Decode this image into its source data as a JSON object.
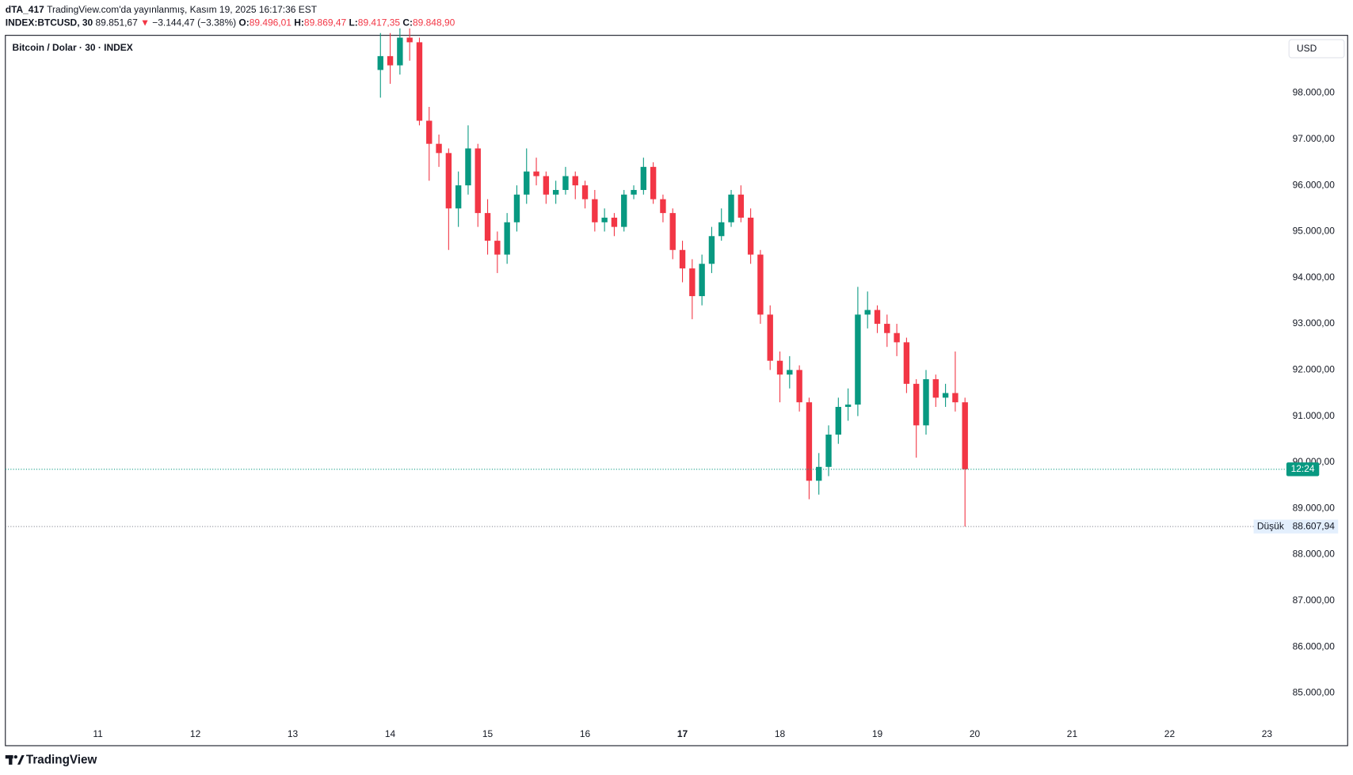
{
  "header": {
    "author": "dTA_417",
    "published": "TradingView.com'da yayınlanmış, Kasım 19, 2025 16:17:36 EST",
    "symbol": "INDEX:BTCUSD, 30",
    "last": "89.851,67",
    "arrow": "▼",
    "change": "−3.144,47 (−3.38%)",
    "open_label": "O:",
    "open": "89.496,01",
    "high_label": "H:",
    "high": "89.869,47",
    "low_label": "L:",
    "low": "89.417,35",
    "close_label": "C:",
    "close": "89.848,90"
  },
  "footer": {
    "brand": "TradingView"
  },
  "chart_data": {
    "type": "candlestick",
    "title": "Bitcoin / Dolar · 30 · INDEX",
    "currency": "USD",
    "up_color": "#089981",
    "down_color": "#f23645",
    "xlim": [
      10.05,
      23.19
    ],
    "xticks": [
      11,
      12,
      13,
      14,
      15,
      16,
      17,
      18,
      19,
      20,
      21,
      22,
      23
    ],
    "xtick_bold": 17,
    "ylim": [
      83860,
      99250
    ],
    "yticks": [
      {
        "value": 85000,
        "label": "85.000,00"
      },
      {
        "value": 86000,
        "label": "86.000,00"
      },
      {
        "value": 87000,
        "label": "87.000,00"
      },
      {
        "value": 88000,
        "label": "88.000,00"
      },
      {
        "value": 89000,
        "label": "89.000,00"
      },
      {
        "value": 90000,
        "label": "90.000,00"
      },
      {
        "value": 91000,
        "label": "91.000,00"
      },
      {
        "value": 92000,
        "label": "92.000,00"
      },
      {
        "value": 93000,
        "label": "93.000,00"
      },
      {
        "value": 94000,
        "label": "94.000,00"
      },
      {
        "value": 95000,
        "label": "95.000,00"
      },
      {
        "value": 96000,
        "label": "96.000,00"
      },
      {
        "value": 97000,
        "label": "97.000,00"
      },
      {
        "value": 98000,
        "label": "98.000,00"
      }
    ],
    "price_line": {
      "value": 89848.9,
      "countdown": "12:24"
    },
    "low_line": {
      "label": "Düşük",
      "value": 88607.94,
      "value_label": "88.607,94"
    },
    "candles": [
      {
        "x": 13.9,
        "open": 98500,
        "high": 99300,
        "low": 97900,
        "close": 98800
      },
      {
        "x": 14.0,
        "open": 98800,
        "high": 99300,
        "low": 98200,
        "close": 98600
      },
      {
        "x": 14.1,
        "open": 98600,
        "high": 99400,
        "low": 98400,
        "close": 99200
      },
      {
        "x": 14.2,
        "open": 99200,
        "high": 99400,
        "low": 98700,
        "close": 99100
      },
      {
        "x": 14.3,
        "open": 99100,
        "high": 99200,
        "low": 97300,
        "close": 97400
      },
      {
        "x": 14.4,
        "open": 97400,
        "high": 97700,
        "low": 96100,
        "close": 96900
      },
      {
        "x": 14.5,
        "open": 96900,
        "high": 97100,
        "low": 96400,
        "close": 96700
      },
      {
        "x": 14.6,
        "open": 96700,
        "high": 96800,
        "low": 94600,
        "close": 95500
      },
      {
        "x": 14.7,
        "open": 95500,
        "high": 96300,
        "low": 95100,
        "close": 96000
      },
      {
        "x": 14.8,
        "open": 96000,
        "high": 97300,
        "low": 95800,
        "close": 96800
      },
      {
        "x": 14.9,
        "open": 96800,
        "high": 96900,
        "low": 95100,
        "close": 95400
      },
      {
        "x": 15.0,
        "open": 95400,
        "high": 95700,
        "low": 94500,
        "close": 94800
      },
      {
        "x": 15.1,
        "open": 94800,
        "high": 95000,
        "low": 94100,
        "close": 94500
      },
      {
        "x": 15.2,
        "open": 94500,
        "high": 95400,
        "low": 94300,
        "close": 95200
      },
      {
        "x": 15.3,
        "open": 95200,
        "high": 96000,
        "low": 95000,
        "close": 95800
      },
      {
        "x": 15.4,
        "open": 95800,
        "high": 96800,
        "low": 95600,
        "close": 96300
      },
      {
        "x": 15.5,
        "open": 96300,
        "high": 96600,
        "low": 96000,
        "close": 96200
      },
      {
        "x": 15.6,
        "open": 96200,
        "high": 96300,
        "low": 95600,
        "close": 95800
      },
      {
        "x": 15.7,
        "open": 95800,
        "high": 96100,
        "low": 95600,
        "close": 95900
      },
      {
        "x": 15.8,
        "open": 95900,
        "high": 96400,
        "low": 95800,
        "close": 96200
      },
      {
        "x": 15.9,
        "open": 96200,
        "high": 96300,
        "low": 95700,
        "close": 96000
      },
      {
        "x": 16.0,
        "open": 96000,
        "high": 96100,
        "low": 95500,
        "close": 95700
      },
      {
        "x": 16.1,
        "open": 95700,
        "high": 95900,
        "low": 95000,
        "close": 95200
      },
      {
        "x": 16.2,
        "open": 95200,
        "high": 95500,
        "low": 95000,
        "close": 95300
      },
      {
        "x": 16.3,
        "open": 95300,
        "high": 95400,
        "low": 94900,
        "close": 95100
      },
      {
        "x": 16.4,
        "open": 95100,
        "high": 95900,
        "low": 95000,
        "close": 95800
      },
      {
        "x": 16.5,
        "open": 95800,
        "high": 96000,
        "low": 95700,
        "close": 95900
      },
      {
        "x": 16.6,
        "open": 95900,
        "high": 96600,
        "low": 95800,
        "close": 96400
      },
      {
        "x": 16.7,
        "open": 96400,
        "high": 96500,
        "low": 95600,
        "close": 95700
      },
      {
        "x": 16.8,
        "open": 95700,
        "high": 95800,
        "low": 95200,
        "close": 95400
      },
      {
        "x": 16.9,
        "open": 95400,
        "high": 95500,
        "low": 94400,
        "close": 94600
      },
      {
        "x": 17.0,
        "open": 94600,
        "high": 94800,
        "low": 93900,
        "close": 94200
      },
      {
        "x": 17.1,
        "open": 94200,
        "high": 94400,
        "low": 93100,
        "close": 93600
      },
      {
        "x": 17.2,
        "open": 93600,
        "high": 94500,
        "low": 93400,
        "close": 94300
      },
      {
        "x": 17.3,
        "open": 94300,
        "high": 95100,
        "low": 94100,
        "close": 94900
      },
      {
        "x": 17.4,
        "open": 94900,
        "high": 95500,
        "low": 94800,
        "close": 95200
      },
      {
        "x": 17.5,
        "open": 95200,
        "high": 95900,
        "low": 95100,
        "close": 95800
      },
      {
        "x": 17.6,
        "open": 95800,
        "high": 96000,
        "low": 95200,
        "close": 95300
      },
      {
        "x": 17.7,
        "open": 95300,
        "high": 95500,
        "low": 94300,
        "close": 94500
      },
      {
        "x": 17.8,
        "open": 94500,
        "high": 94600,
        "low": 93000,
        "close": 93200
      },
      {
        "x": 17.9,
        "open": 93200,
        "high": 93400,
        "low": 92000,
        "close": 92200
      },
      {
        "x": 18.0,
        "open": 92200,
        "high": 92400,
        "low": 91300,
        "close": 91900
      },
      {
        "x": 18.1,
        "open": 91900,
        "high": 92300,
        "low": 91600,
        "close": 92000
      },
      {
        "x": 18.2,
        "open": 92000,
        "high": 92100,
        "low": 91100,
        "close": 91300
      },
      {
        "x": 18.3,
        "open": 91300,
        "high": 91400,
        "low": 89200,
        "close": 89600
      },
      {
        "x": 18.4,
        "open": 89600,
        "high": 90200,
        "low": 89300,
        "close": 89900
      },
      {
        "x": 18.5,
        "open": 89900,
        "high": 90800,
        "low": 89700,
        "close": 90600
      },
      {
        "x": 18.6,
        "open": 90600,
        "high": 91400,
        "low": 90400,
        "close": 91200
      },
      {
        "x": 18.7,
        "open": 91200,
        "high": 91600,
        "low": 90900,
        "close": 91250
      },
      {
        "x": 18.8,
        "open": 91250,
        "high": 93800,
        "low": 91000,
        "close": 93200
      },
      {
        "x": 18.9,
        "open": 93200,
        "high": 93700,
        "low": 92900,
        "close": 93300
      },
      {
        "x": 19.0,
        "open": 93300,
        "high": 93400,
        "low": 92800,
        "close": 93000
      },
      {
        "x": 19.1,
        "open": 93000,
        "high": 93200,
        "low": 92500,
        "close": 92800
      },
      {
        "x": 19.2,
        "open": 92800,
        "high": 93000,
        "low": 92300,
        "close": 92600
      },
      {
        "x": 19.3,
        "open": 92600,
        "high": 92700,
        "low": 91500,
        "close": 91700
      },
      {
        "x": 19.4,
        "open": 91700,
        "high": 91800,
        "low": 90100,
        "close": 90800
      },
      {
        "x": 19.5,
        "open": 90800,
        "high": 92000,
        "low": 90600,
        "close": 91800
      },
      {
        "x": 19.6,
        "open": 91800,
        "high": 91900,
        "low": 91200,
        "close": 91400
      },
      {
        "x": 19.7,
        "open": 91400,
        "high": 91700,
        "low": 91200,
        "close": 91500
      },
      {
        "x": 19.8,
        "open": 91500,
        "high": 92400,
        "low": 91100,
        "close": 91300
      },
      {
        "x": 19.9,
        "open": 91300,
        "high": 91400,
        "low": 88607.94,
        "close": 89848.9
      }
    ]
  }
}
